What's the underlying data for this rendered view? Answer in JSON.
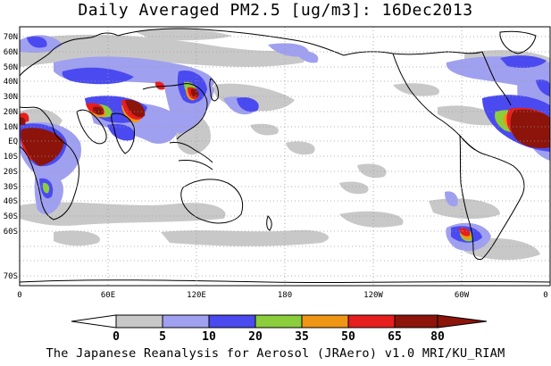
{
  "title": "Daily Averaged PM2.5 [ug/m3]: 16Dec2013",
  "footer": "The Japanese Reanalysis for Aerosol (JRAero) v1.0 MRI/KU_RIAM",
  "lat_labels": [
    "70N",
    "60N",
    "50N",
    "40N",
    "30N",
    "20N",
    "10N",
    "EQ",
    "10S",
    "20S",
    "30S",
    "40S",
    "50S",
    "60S",
    "70S"
  ],
  "lon_labels": [
    "0",
    "60E",
    "120E",
    "180",
    "120W",
    "60W",
    "0"
  ],
  "colorbar": {
    "levels": [
      "0",
      "5",
      "10",
      "20",
      "35",
      "50",
      "65",
      "80"
    ],
    "colors": [
      "#ffffff",
      "#c8c8c8",
      "#a0a0f0",
      "#4a4af0",
      "#8ccd3c",
      "#f09614",
      "#e61e1e",
      "#8c140a"
    ]
  }
}
